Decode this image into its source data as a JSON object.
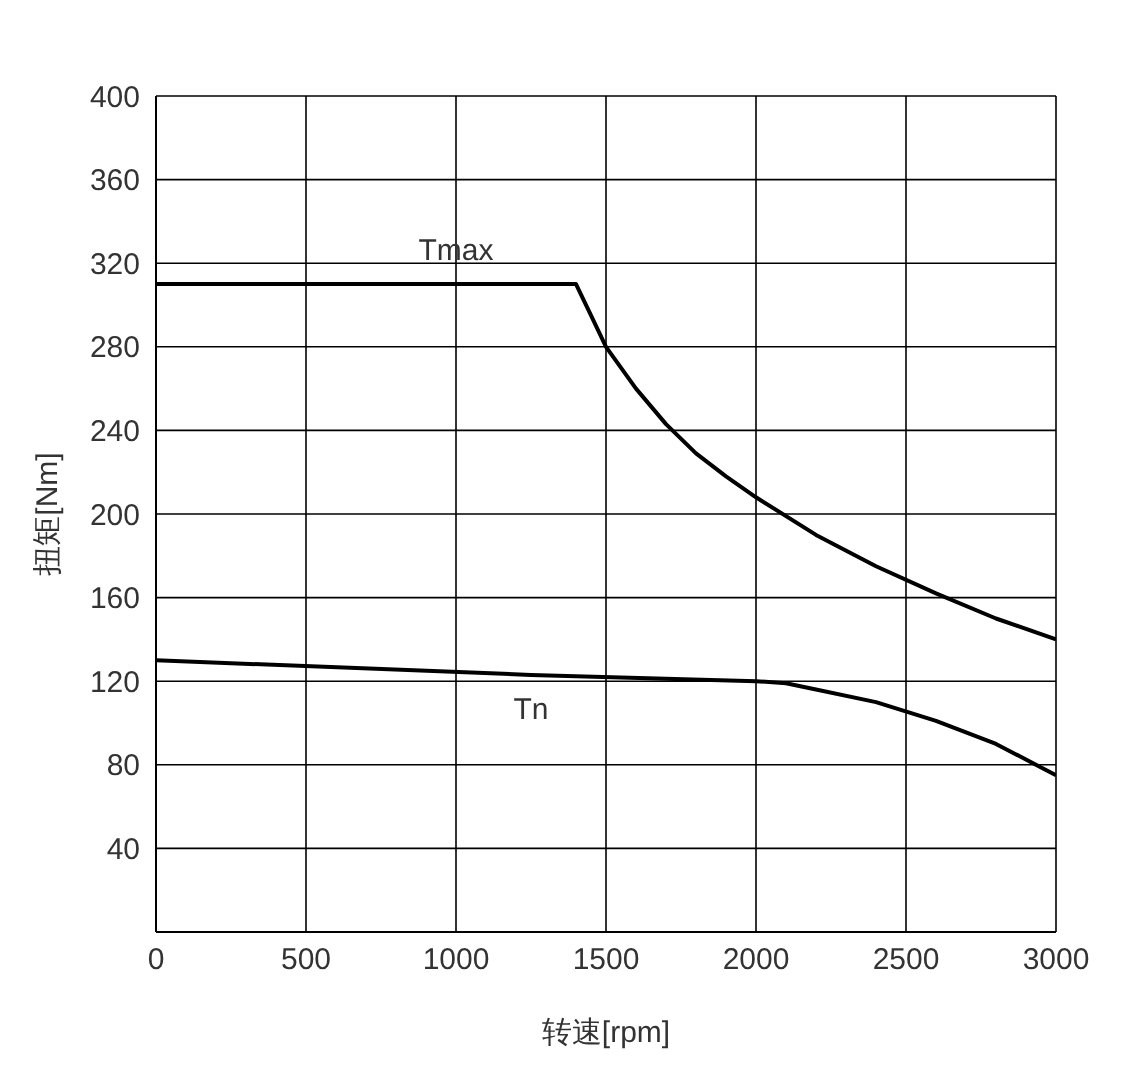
{
  "chart_data": {
    "type": "line",
    "xlabel": "转速[rpm]",
    "ylabel": "扭矩[Nm]",
    "xlim": [
      0,
      3000
    ],
    "xticks": [
      0,
      500,
      1000,
      1500,
      2000,
      2500,
      3000
    ],
    "ylim": [
      0,
      400
    ],
    "yticks": [
      40,
      80,
      120,
      160,
      200,
      240,
      280,
      320,
      360,
      400
    ],
    "grid": true,
    "marker": "none",
    "line_style": "solid",
    "series": [
      {
        "name": "Tmax",
        "color": "#000000",
        "x": [
          0,
          1000,
          1400,
          1450,
          1500,
          1600,
          1700,
          1800,
          1900,
          2000,
          2200,
          2400,
          2600,
          2800,
          3000
        ],
        "values": [
          310,
          310,
          310,
          295,
          280,
          260,
          243,
          229,
          218,
          208,
          190,
          175,
          162,
          150,
          140
        ]
      },
      {
        "name": "Tn",
        "color": "#000000",
        "x": [
          0,
          1250,
          2000,
          2100,
          2200,
          2400,
          2600,
          2800,
          3000
        ],
        "values": [
          130,
          123,
          120,
          119,
          116,
          110,
          101,
          90,
          75
        ]
      }
    ]
  }
}
